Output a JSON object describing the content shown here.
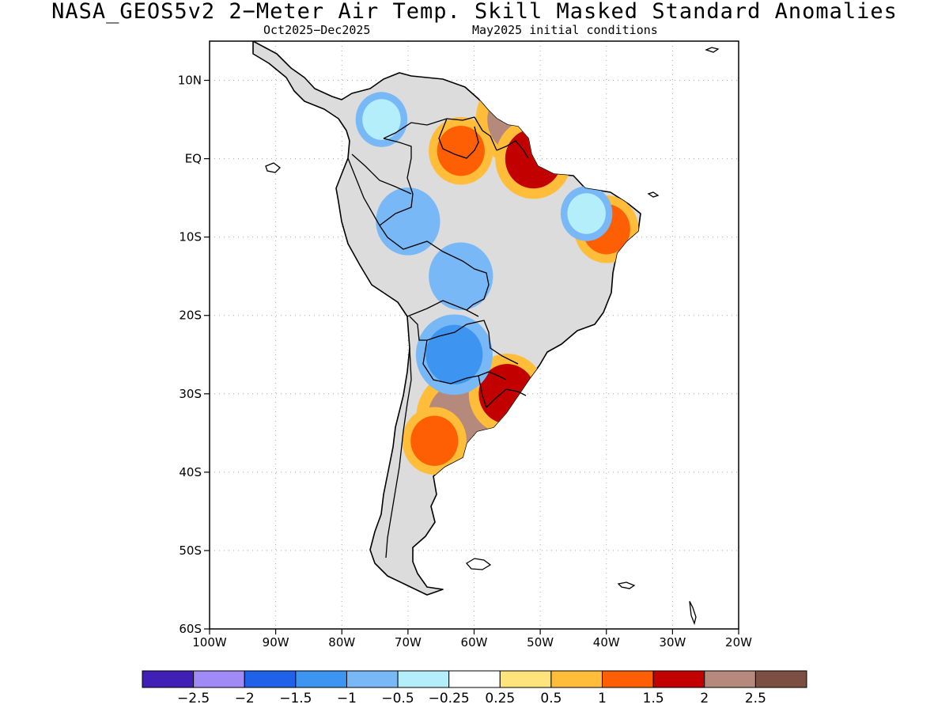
{
  "title": "NASA_GEOS5v2 2−Meter Air Temp. Skill Masked Standard Anomalies",
  "subtitle_left": "Oct2025−Dec2025",
  "subtitle_right": "May2025 initial conditions",
  "map": {
    "lon_range": [
      -100,
      -20
    ],
    "lat_range": [
      -60,
      15
    ],
    "lat_ticks": [
      {
        "value": 10,
        "label": "10N"
      },
      {
        "value": 0,
        "label": "EQ"
      },
      {
        "value": -10,
        "label": "10S"
      },
      {
        "value": -20,
        "label": "20S"
      },
      {
        "value": -30,
        "label": "30S"
      },
      {
        "value": -40,
        "label": "40S"
      },
      {
        "value": -50,
        "label": "50S"
      },
      {
        "value": -60,
        "label": "60S"
      }
    ],
    "lon_ticks": [
      {
        "value": -100,
        "label": "100W"
      },
      {
        "value": -90,
        "label": "90W"
      },
      {
        "value": -80,
        "label": "80W"
      },
      {
        "value": -70,
        "label": "70W"
      },
      {
        "value": -60,
        "label": "60W"
      },
      {
        "value": -50,
        "label": "50W"
      },
      {
        "value": -40,
        "label": "40W"
      },
      {
        "value": -30,
        "label": "30W"
      },
      {
        "value": -20,
        "label": "20W"
      }
    ],
    "grid": true,
    "land_color": "#dcdcdc"
  },
  "colorbar": {
    "colors": [
      "#3f1fb5",
      "#9f8af6",
      "#1f62e8",
      "#3d95f1",
      "#78b8f7",
      "#b3eefa",
      "#ffffff",
      "#ffe47c",
      "#ffbd3a",
      "#fe5f04",
      "#c20000",
      "#b58a7d",
      "#7b5042"
    ],
    "labels": [
      "−2.5",
      "−2",
      "−1.5",
      "−1",
      "−0.5",
      "−0.25",
      "0.25",
      "0.5",
      "1",
      "1.5",
      "2",
      "2.5"
    ]
  },
  "anomaly_regions": [
    {
      "name": "central-argentina-warm",
      "lon": -62,
      "lat": -33,
      "value": 2.0
    },
    {
      "name": "pampas-warm",
      "lon": -66,
      "lat": -36,
      "value": 1.0
    },
    {
      "name": "uruguay-south-brazil-warm",
      "lon": -55,
      "lat": -30,
      "value": 1.5
    },
    {
      "name": "guianas-warm",
      "lon": -53,
      "lat": 5,
      "value": 2.0
    },
    {
      "name": "amazon-mouth-warm",
      "lon": -51,
      "lat": 0,
      "value": 1.5
    },
    {
      "name": "venezuela-south-warm",
      "lon": -62,
      "lat": 1,
      "value": 1.0
    },
    {
      "name": "northeast-brazil-warm",
      "lon": -40,
      "lat": -9,
      "value": 1.0
    },
    {
      "name": "peru-brazil-border-cool",
      "lon": -70,
      "lat": -8,
      "value": -1.0
    },
    {
      "name": "bolivia-cool",
      "lon": -62,
      "lat": -15,
      "value": -1.0
    },
    {
      "name": "paraguay-chaco-cool",
      "lon": -63,
      "lat": -25,
      "value": -1.5
    },
    {
      "name": "northeast-brazil-cool",
      "lon": -43,
      "lat": -7,
      "value": -0.5
    },
    {
      "name": "colombia-cool",
      "lon": -74,
      "lat": 5,
      "value": -0.5
    }
  ]
}
